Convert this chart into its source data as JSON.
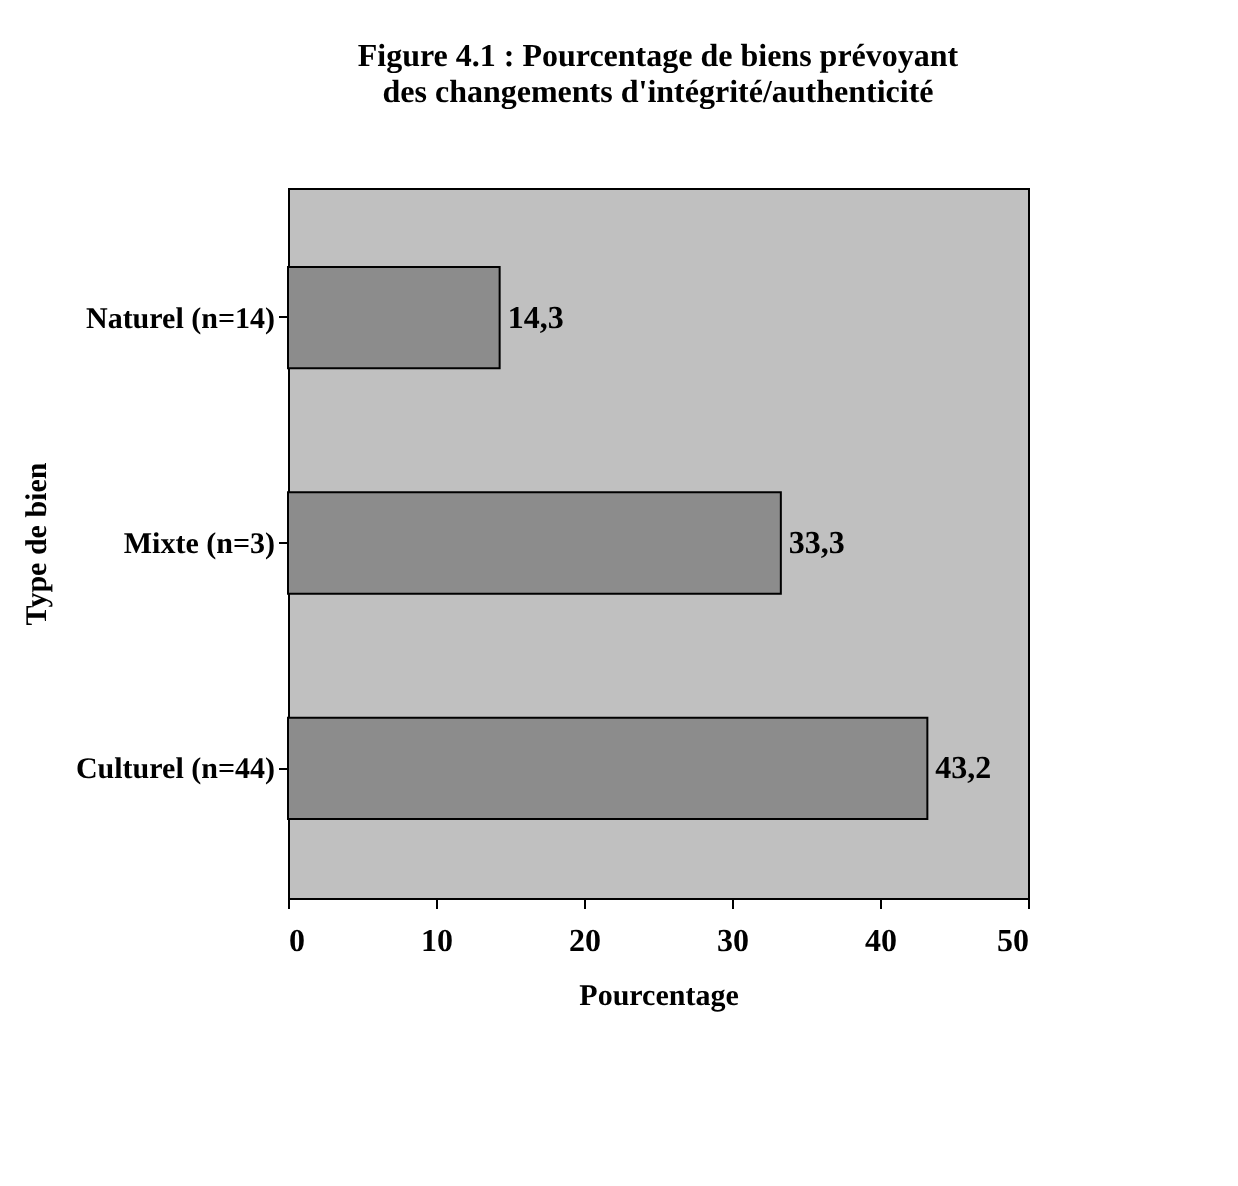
{
  "chart_data": {
    "type": "bar",
    "orientation": "horizontal",
    "title": [
      "Figure 4.1 : Pourcentage de biens prévoyant",
      "des changements d'intégrité/authenticité"
    ],
    "xlabel": "Pourcentage",
    "ylabel": "Type de bien",
    "categories": [
      "Naturel (n=14)",
      "Mixte (n=3)",
      "Culturel (n=44)"
    ],
    "values": [
      14.3,
      33.3,
      43.2
    ],
    "color": "#8c8c8c",
    "value_labels": [
      "14,3",
      "33,3",
      "43,2"
    ],
    "xlim": [
      0,
      50
    ],
    "xticks": [
      0,
      10,
      20,
      30,
      40,
      50
    ],
    "grid": false
  }
}
